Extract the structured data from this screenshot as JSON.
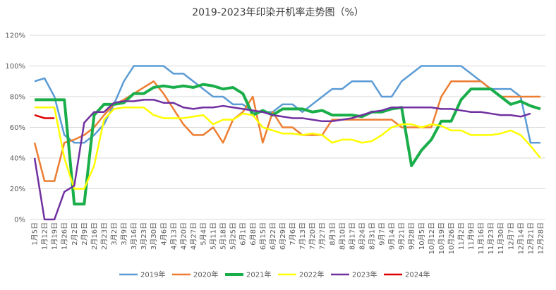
{
  "chart_data": {
    "type": "line",
    "title": "2019-2023年印染开机率走势图（%）",
    "categories": [
      "1月5日",
      "1月12日",
      "1月19日",
      "1月26日",
      "2月2日",
      "2月9日",
      "2月16日",
      "2月23日",
      "3月2日",
      "3月9日",
      "3月16日",
      "3月23日",
      "3月30日",
      "4月6日",
      "4月13日",
      "4月20日",
      "4月27日",
      "5月4日",
      "5月11日",
      "5月18日",
      "5月25日",
      "6月1日",
      "6月8日",
      "6月15日",
      "6月22日",
      "6月29日",
      "7月6日",
      "7月13日",
      "7月20日",
      "7月27日",
      "8月3日",
      "8月10日",
      "8月17日",
      "8月24日",
      "8月31日",
      "9月7日",
      "9月14日",
      "9月21日",
      "9月28日",
      "10月5日",
      "10月12日",
      "10月19日",
      "10月26日",
      "11月2日",
      "11月9日",
      "11月16日",
      "11月23日",
      "11月30日",
      "12月7日",
      "12月14日",
      "12月21日",
      "12月28日"
    ],
    "series": [
      {
        "name": "2019年",
        "color": "#5b9bd5",
        "width": 2.5,
        "values": [
          90,
          92,
          80,
          55,
          50,
          50,
          55,
          62,
          75,
          90,
          100,
          100,
          100,
          100,
          95,
          95,
          90,
          85,
          80,
          80,
          75,
          75,
          70,
          70,
          70,
          75,
          75,
          70,
          75,
          80,
          85,
          85,
          90,
          90,
          90,
          80,
          80,
          90,
          95,
          100,
          100,
          100,
          100,
          100,
          95,
          90,
          85,
          85,
          85,
          80,
          50,
          50
        ]
      },
      {
        "name": "2020年",
        "color": "#ed7d31",
        "width": 2.5,
        "values": [
          50,
          25,
          25,
          50,
          52,
          55,
          60,
          68,
          75,
          78,
          82,
          86,
          90,
          82,
          72,
          62,
          55,
          55,
          60,
          50,
          65,
          70,
          80,
          50,
          70,
          60,
          60,
          55,
          55,
          55,
          65,
          65,
          65,
          65,
          65,
          65,
          65,
          60,
          60,
          60,
          60,
          80,
          90,
          90,
          90,
          90,
          85,
          80,
          80,
          80,
          80,
          80
        ]
      },
      {
        "name": "2021年",
        "color": "#1aae4a",
        "width": 4,
        "values": [
          78,
          78,
          78,
          78,
          10,
          10,
          68,
          75,
          75,
          76,
          82,
          82,
          86,
          87,
          86,
          87,
          86,
          88,
          87,
          85,
          86,
          82,
          68,
          71,
          68,
          72,
          72,
          72,
          70,
          71,
          68,
          68,
          68,
          67,
          70,
          70,
          72,
          73,
          35,
          45,
          52,
          64,
          64,
          78,
          85,
          85,
          85,
          80,
          75,
          77,
          74,
          72
        ]
      },
      {
        "name": "2022年",
        "color": "#ffff00",
        "width": 2.5,
        "values": [
          73,
          73,
          73,
          40,
          20,
          20,
          35,
          65,
          72,
          73,
          73,
          73,
          68,
          66,
          66,
          66,
          67,
          68,
          62,
          65,
          65,
          69,
          68,
          60,
          58,
          56,
          56,
          55,
          56,
          55,
          50,
          52,
          52,
          50,
          51,
          55,
          60,
          62,
          62,
          60,
          62,
          61,
          58,
          58,
          55,
          55,
          55,
          56,
          58,
          55,
          48,
          40
        ]
      },
      {
        "name": "2023年",
        "color": "#7030a0",
        "width": 2.5,
        "values": [
          40,
          0,
          0,
          18,
          22,
          63,
          70,
          70,
          76,
          77,
          77,
          78,
          78,
          76,
          76,
          73,
          72,
          73,
          73,
          74,
          73,
          72,
          71,
          70,
          68,
          67,
          66,
          66,
          65,
          64,
          64,
          65,
          66,
          68,
          70,
          71,
          73,
          73,
          73,
          73,
          73,
          72,
          72,
          71,
          70,
          70,
          69,
          68,
          68,
          67,
          69,
          null
        ]
      },
      {
        "name": "2024年",
        "color": "#e00000",
        "width": 2.5,
        "values": [
          68,
          66,
          66,
          null,
          null,
          null,
          null,
          null,
          null,
          null,
          null,
          null,
          null,
          null,
          null,
          null,
          null,
          null,
          null,
          null,
          null,
          null,
          null,
          null,
          null,
          null,
          null,
          null,
          null,
          null,
          null,
          null,
          null,
          null,
          null,
          null,
          null,
          null,
          null,
          null,
          null,
          null,
          null,
          null,
          null,
          null,
          null,
          null,
          null,
          null,
          null,
          null
        ]
      }
    ],
    "ylim": [
      0,
      120
    ],
    "yticks": [
      {
        "value": 0,
        "label": "0%"
      },
      {
        "value": 20,
        "label": "20%"
      },
      {
        "value": 40,
        "label": "40%"
      },
      {
        "value": 60,
        "label": "60%"
      },
      {
        "value": 80,
        "label": "80%"
      },
      {
        "value": 100,
        "label": "100%"
      },
      {
        "value": 120,
        "label": "120%"
      }
    ],
    "grid": true,
    "legend": "bottom"
  }
}
